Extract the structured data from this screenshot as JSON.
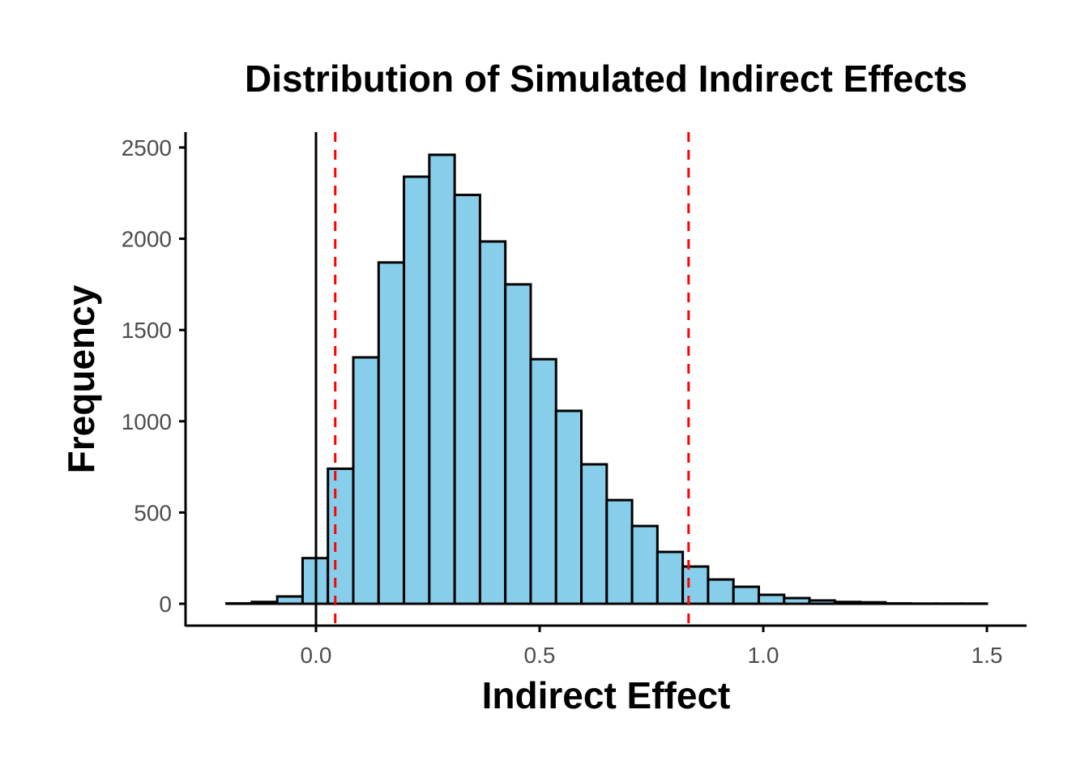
{
  "chart_data": {
    "type": "bar",
    "subtype": "histogram",
    "title": "Distribution of Simulated Indirect Effects",
    "xlabel": "Indirect Effect",
    "ylabel": "Frequency",
    "xlim": [
      -0.29,
      1.58
    ],
    "ylim": [
      -120,
      2580
    ],
    "x_ticks": [
      "0.0",
      "0.5",
      "1.0",
      "1.5"
    ],
    "y_ticks": [
      "0",
      "500",
      "1000",
      "1500",
      "2000",
      "2500"
    ],
    "bin_start": -0.2,
    "bin_end": 1.5,
    "bins": 30,
    "values": [
      2,
      10,
      40,
      250,
      740,
      1350,
      1870,
      2340,
      2460,
      2240,
      1985,
      1750,
      1340,
      1057,
      764,
      568,
      426,
      284,
      204,
      133,
      93,
      49,
      31,
      18,
      10,
      8,
      2,
      1,
      1,
      1
    ],
    "vlines": [
      {
        "x": 0.0,
        "color": "#000000",
        "style": "solid"
      },
      {
        "x": 0.043,
        "color": "#ff0000",
        "style": "dashed"
      },
      {
        "x": 0.833,
        "color": "#ff0000",
        "style": "dashed"
      }
    ],
    "bar_fill": "#87ceeb",
    "bar_stroke": "#000000",
    "grid": false
  }
}
